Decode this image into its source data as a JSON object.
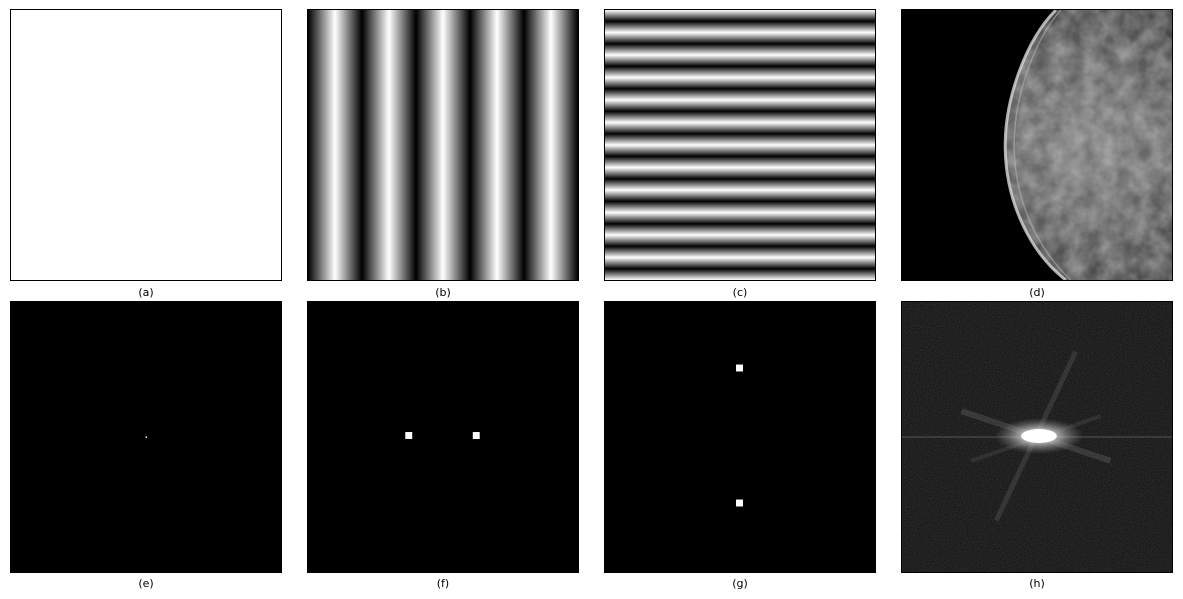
{
  "panels": [
    {
      "id": "a",
      "caption": "(a)",
      "content": "uniform-white"
    },
    {
      "id": "b",
      "caption": "(b)",
      "content": "vertical-sinusoidal-stripes"
    },
    {
      "id": "c",
      "caption": "(c)",
      "content": "horizontal-sinusoidal-stripes"
    },
    {
      "id": "d",
      "caption": "(d)",
      "content": "mammogram-image"
    },
    {
      "id": "e",
      "caption": "(e)",
      "content": "fft-single-dc-point"
    },
    {
      "id": "f",
      "caption": "(f)",
      "content": "fft-two-horizontal-points"
    },
    {
      "id": "g",
      "caption": "(g)",
      "content": "fft-two-vertical-points"
    },
    {
      "id": "h",
      "caption": "(h)",
      "content": "fft-mammogram-spectrum"
    }
  ],
  "colors": {
    "background": "#ffffff",
    "black": "#000000",
    "white": "#ffffff"
  }
}
